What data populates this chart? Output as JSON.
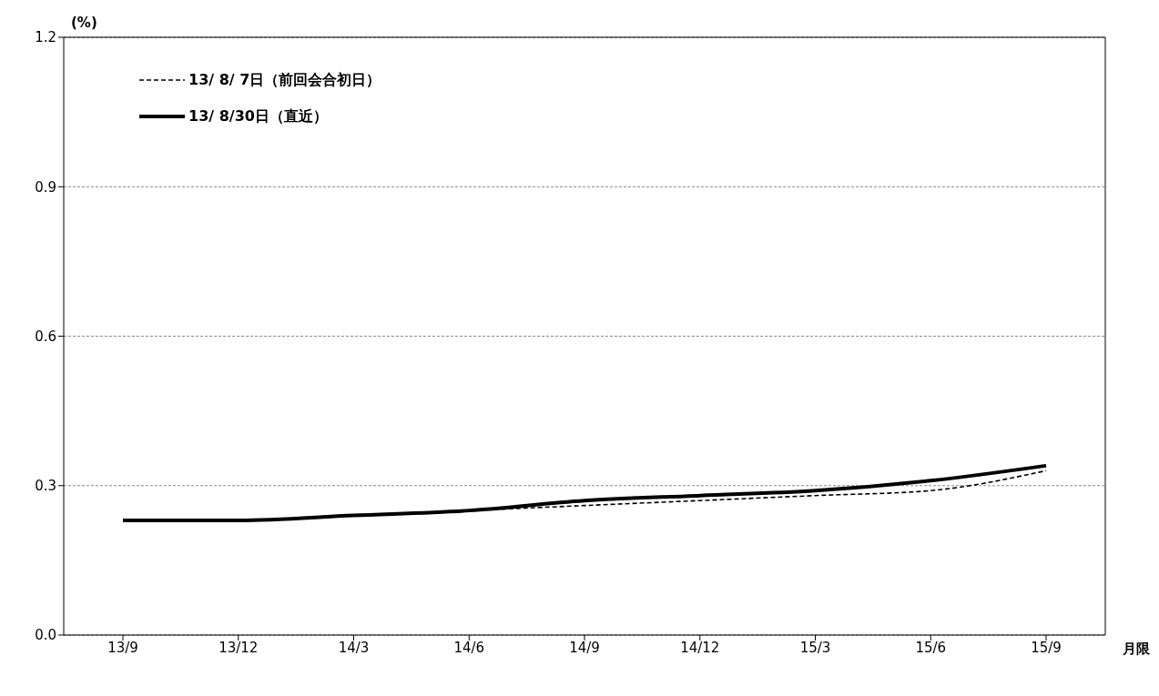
{
  "chart_data": {
    "type": "line",
    "ylabel": "(%)",
    "xlabel": "月限",
    "categories": [
      "13/9",
      "13/12",
      "14/3",
      "14/6",
      "14/9",
      "14/12",
      "15/3",
      "15/6",
      "15/9"
    ],
    "series": [
      {
        "name": "13/ 8/ 7日（前回会合初日）",
        "color": "#000000",
        "line_style": "dashed",
        "values": [
          0.23,
          0.23,
          0.24,
          0.25,
          0.26,
          0.27,
          0.28,
          0.29,
          0.33
        ]
      },
      {
        "name": "13/ 8/30日（直近）",
        "color": "#000000",
        "line_style": "solid",
        "values": [
          0.23,
          0.23,
          0.24,
          0.25,
          0.27,
          0.28,
          0.29,
          0.31,
          0.34
        ]
      }
    ],
    "ylim": [
      0,
      1.2
    ],
    "yticks": [
      {
        "value": 0,
        "label": "0.0"
      },
      {
        "value": 0.3,
        "label": "0.3"
      },
      {
        "value": 0.6,
        "label": "0.6"
      },
      {
        "value": 0.9,
        "label": "0.9"
      },
      {
        "value": 1.2,
        "label": "1.2"
      }
    ],
    "grid": "y",
    "legend": "top left",
    "marker": "none"
  }
}
